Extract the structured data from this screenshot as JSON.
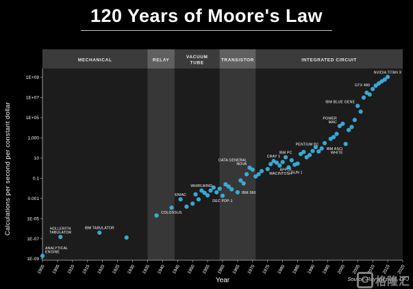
{
  "header": {
    "title": "120 Years of Moore's Law"
  },
  "footer": {
    "source": "Source: Ray Kurzweil, DFJ",
    "watermark": "格隆汇",
    "watermark_letter": "G"
  },
  "chart_data": {
    "type": "scatter",
    "title": "120 Years of Moore's Law",
    "xlabel": "Year",
    "ylabel": "Calculations per second per constant dollar",
    "x_range": [
      1900,
      2020
    ],
    "x_ticks": [
      1900,
      1905,
      1910,
      1915,
      1920,
      1925,
      1930,
      1935,
      1940,
      1945,
      1950,
      1955,
      1960,
      1965,
      1970,
      1975,
      1980,
      1985,
      1990,
      1995,
      2000,
      2005,
      2010,
      2015,
      2020
    ],
    "y_log_range": [
      -9,
      9
    ],
    "y_scale": "log",
    "grid": false,
    "legend": "none",
    "y_ticks": [
      {
        "label": "1E+09",
        "exp": 9
      },
      {
        "label": "1E+07",
        "exp": 7
      },
      {
        "label": "1E+05",
        "exp": 5
      },
      {
        "label": "1,000",
        "exp": 3
      },
      {
        "label": "10",
        "exp": 1
      },
      {
        "label": "0.1",
        "exp": -1
      },
      {
        "label": "0.001",
        "exp": -3
      },
      {
        "label": "1E-05",
        "exp": -5
      },
      {
        "label": "1E-07",
        "exp": -7
      },
      {
        "label": "1E-09",
        "exp": -9
      }
    ],
    "point_color": "#2eb2e6",
    "plot_bg": "#1c1c1c",
    "band_bg": "#373737",
    "header_bg": "#3b3b3b",
    "header_band_bg": "#606060",
    "eras": [
      {
        "name": "MECHANICAL",
        "start": 1900,
        "end": 1935,
        "shaded": false
      },
      {
        "name": "RELAY",
        "start": 1935,
        "end": 1944,
        "shaded": true
      },
      {
        "name": "VACUUM\nTUBE",
        "start": 1944,
        "end": 1959,
        "shaded": false
      },
      {
        "name": "TRANSISTOR",
        "start": 1959,
        "end": 1971,
        "shaded": true
      },
      {
        "name": "INTEGRATED CIRCUIT",
        "start": 1971,
        "end": 2020,
        "shaded": false
      }
    ],
    "points": [
      {
        "year": 1900,
        "value": 2e-09,
        "label": "ANALYTICAL\nENGINE",
        "label_pos": "above-right"
      },
      {
        "year": 1906,
        "value": 1.5e-07,
        "label": "HOLLERITH\nTABULATOR",
        "label_pos": "above"
      },
      {
        "year": 1919,
        "value": 4e-07,
        "label": "IBM TABULATOR",
        "label_pos": "above"
      },
      {
        "year": 1928,
        "value": 1.3e-07
      },
      {
        "year": 1938,
        "value": 2e-05
      },
      {
        "year": 1943,
        "value": 0.00012,
        "label": "COLOSSUS",
        "label_pos": "below"
      },
      {
        "year": 1946,
        "value": 0.0008,
        "label": "ENIAC",
        "label_pos": "above"
      },
      {
        "year": 1948,
        "value": 0.00015
      },
      {
        "year": 1950,
        "value": 0.0003
      },
      {
        "year": 1951,
        "value": 0.0025
      },
      {
        "year": 1952,
        "value": 0.0008
      },
      {
        "year": 1953,
        "value": 0.006,
        "label": "WHIRLWIND",
        "label_pos": "above"
      },
      {
        "year": 1954,
        "value": 0.0035
      },
      {
        "year": 1955,
        "value": 0.002
      },
      {
        "year": 1956,
        "value": 0.006
      },
      {
        "year": 1957,
        "value": 0.012
      },
      {
        "year": 1958,
        "value": 0.004
      },
      {
        "year": 1959,
        "value": 0.009
      },
      {
        "year": 1960,
        "value": 0.0018,
        "label": "DEC PDP-1",
        "label_pos": "below"
      },
      {
        "year": 1961,
        "value": 0.025
      },
      {
        "year": 1962,
        "value": 0.015
      },
      {
        "year": 1963,
        "value": 0.008
      },
      {
        "year": 1965,
        "value": 0.004,
        "label": "IBM 360",
        "label_pos": "right"
      },
      {
        "year": 1966,
        "value": 0.06
      },
      {
        "year": 1967,
        "value": 0.03
      },
      {
        "year": 1968,
        "value": 0.25
      },
      {
        "year": 1969,
        "value": 1.1,
        "label": "DATA GENERAL\nNOVA",
        "label_pos": "above-left"
      },
      {
        "year": 1970,
        "value": 0.7
      },
      {
        "year": 1971,
        "value": 0.15
      },
      {
        "year": 1972,
        "value": 0.25
      },
      {
        "year": 1973,
        "value": 0.5
      },
      {
        "year": 1975,
        "value": 0.8
      },
      {
        "year": 1976,
        "value": 2.5
      },
      {
        "year": 1977,
        "value": 5,
        "label": "CRAY 1",
        "label_pos": "above"
      },
      {
        "year": 1978,
        "value": 3.5
      },
      {
        "year": 1979,
        "value": 1.8
      },
      {
        "year": 1980,
        "value": 4
      },
      {
        "year": 1981,
        "value": 12,
        "label": "IBM PC",
        "label_pos": "above"
      },
      {
        "year": 1982,
        "value": 1.2,
        "label": "SUN 1",
        "label_pos": "below-right"
      },
      {
        "year": 1983,
        "value": 6
      },
      {
        "year": 1984,
        "value": 2.2,
        "label": "APPLE\nMACINTOSH",
        "label_pos": "below-left"
      },
      {
        "year": 1985,
        "value": 2.8
      },
      {
        "year": 1986,
        "value": 25
      },
      {
        "year": 1987,
        "value": 40
      },
      {
        "year": 1988,
        "value": 12
      },
      {
        "year": 1989,
        "value": 20
      },
      {
        "year": 1990,
        "value": 50
      },
      {
        "year": 1991,
        "value": 120
      },
      {
        "year": 1992,
        "value": 45
      },
      {
        "year": 1993,
        "value": 90,
        "label": "PENTIUM PC",
        "label_pos": "above-left"
      },
      {
        "year": 1994,
        "value": 300
      },
      {
        "year": 1996,
        "value": 800
      },
      {
        "year": 1997,
        "value": 1200
      },
      {
        "year": 1998,
        "value": 2500
      },
      {
        "year": 1999,
        "value": 15000.0,
        "label": "POWER\nMAC",
        "label_pos": "above-left"
      },
      {
        "year": 2000,
        "value": 25000.0
      },
      {
        "year": 2001,
        "value": 250,
        "label": "IBM ASCI\nWHITE",
        "label_pos": "below-left"
      },
      {
        "year": 2002,
        "value": 6000.0
      },
      {
        "year": 2003,
        "value": 12000.0
      },
      {
        "year": 2004,
        "value": 60000.0
      },
      {
        "year": 2005,
        "value": 1500000.0,
        "label": "IBM BLUE GENE",
        "label_pos": "above-left"
      },
      {
        "year": 2006,
        "value": 400000.0
      },
      {
        "year": 2007,
        "value": 10000000.0
      },
      {
        "year": 2008,
        "value": 30000000.0
      },
      {
        "year": 2009,
        "value": 20000000.0
      },
      {
        "year": 2010,
        "value": 70000000.0,
        "label": "GTX 480",
        "label_pos": "above-left"
      },
      {
        "year": 2011,
        "value": 150000000.0
      },
      {
        "year": 2012,
        "value": 250000000.0
      },
      {
        "year": 2013,
        "value": 400000000.0
      },
      {
        "year": 2014,
        "value": 600000000.0
      },
      {
        "year": 2015,
        "value": 1100000000.0,
        "label": "NVIDIA TITAN X",
        "label_pos": "above"
      }
    ]
  }
}
